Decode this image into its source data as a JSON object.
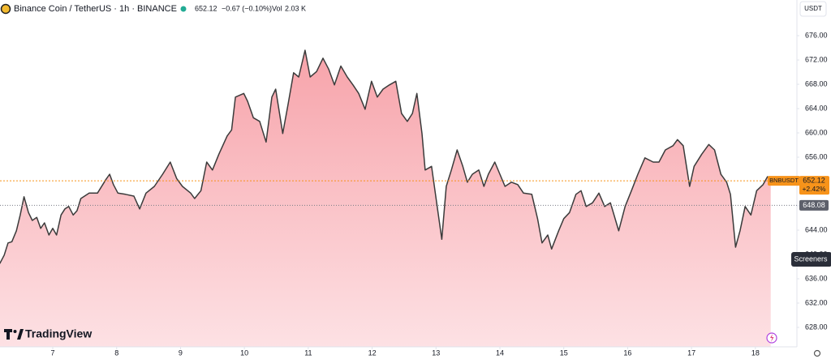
{
  "chart_data": {
    "type": "area",
    "title": "Binance Coin / TetherUS · 1h · BINANCE",
    "header": {
      "price_change": "−0.67 (−0.10%)",
      "volume_label": "Vol",
      "volume": "2.03 K"
    },
    "currency": "USDT",
    "line_color": "#3b3b3b",
    "fill_top": "#f7a3aa",
    "fill_bottom": "#fde1e4",
    "x": [
      6.17,
      6.24,
      6.3,
      6.36,
      6.43,
      6.49,
      6.55,
      6.62,
      6.68,
      6.75,
      6.81,
      6.87,
      6.94,
      7.0,
      7.06,
      7.13,
      7.19,
      7.25,
      7.32,
      7.38,
      7.44,
      7.57,
      7.7,
      7.83,
      7.89,
      7.95,
      8.02,
      8.14,
      8.27,
      8.36,
      8.46,
      8.59,
      8.72,
      8.84,
      8.94,
      9.03,
      9.16,
      9.22,
      9.32,
      9.41,
      9.5,
      9.6,
      9.73,
      9.8,
      9.86,
      9.99,
      10.05,
      10.14,
      10.24,
      10.34,
      10.43,
      10.49,
      10.6,
      10.68,
      10.77,
      10.85,
      10.95,
      11.03,
      11.13,
      11.23,
      11.32,
      11.41,
      11.51,
      11.61,
      11.7,
      11.79,
      11.89,
      11.99,
      12.08,
      12.17,
      12.27,
      12.37,
      12.46,
      12.55,
      12.63,
      12.7,
      12.78,
      12.83,
      12.93,
      13.01,
      13.09,
      13.16,
      13.24,
      13.33,
      13.42,
      13.49,
      13.57,
      13.67,
      13.75,
      13.82,
      13.92,
      14.0,
      14.08,
      14.18,
      14.28,
      14.37,
      14.5,
      14.59,
      14.66,
      14.75,
      14.81,
      14.92,
      15.0,
      15.09,
      15.19,
      15.27,
      15.35,
      15.45,
      15.55,
      15.64,
      15.73,
      15.86,
      15.96,
      16.06,
      16.16,
      16.27,
      16.4,
      16.49,
      16.59,
      16.71,
      16.78,
      16.87,
      16.97,
      17.04,
      17.16,
      17.27,
      17.36,
      17.46,
      17.55,
      17.61,
      17.69,
      17.76,
      17.84,
      17.93,
      18.02,
      18.12,
      18.19,
      18.24
    ],
    "values": [
      638.5,
      639.9,
      641.9,
      642.1,
      643.9,
      646.5,
      649.5,
      646.9,
      645.6,
      646.1,
      644.3,
      645.2,
      643.2,
      644.3,
      643.2,
      646.5,
      647.5,
      647.9,
      646.5,
      647.2,
      649.2,
      650.1,
      650.1,
      652.3,
      653.2,
      651.5,
      650.1,
      649.9,
      649.6,
      647.5,
      650.1,
      651.2,
      653.2,
      655.2,
      652.5,
      651.2,
      650.1,
      649.2,
      650.5,
      655.2,
      653.9,
      656.5,
      659.5,
      660.5,
      665.9,
      666.5,
      665.2,
      662.5,
      661.9,
      658.5,
      665.9,
      667.2,
      659.9,
      664.5,
      669.9,
      669.2,
      673.6,
      669.2,
      670.1,
      672.3,
      670.5,
      667.9,
      671.0,
      669.2,
      667.9,
      666.5,
      663.9,
      668.5,
      665.9,
      667.2,
      667.9,
      668.5,
      663.2,
      661.9,
      663.2,
      666.5,
      659.9,
      653.9,
      654.5,
      648.5,
      642.5,
      651.2,
      653.9,
      657.2,
      654.5,
      651.9,
      653.2,
      653.9,
      651.2,
      653.2,
      655.2,
      653.2,
      651.2,
      651.9,
      651.5,
      650.1,
      649.9,
      645.9,
      641.9,
      643.2,
      640.9,
      643.9,
      645.9,
      646.9,
      649.9,
      650.5,
      647.9,
      648.5,
      650.1,
      647.9,
      648.5,
      643.9,
      647.9,
      650.5,
      653.2,
      655.9,
      655.2,
      655.2,
      657.2,
      657.9,
      658.9,
      657.9,
      651.2,
      654.5,
      656.5,
      658.1,
      657.2,
      653.2,
      651.9,
      649.9,
      641.2,
      643.9,
      647.9,
      646.5,
      650.5,
      651.5,
      652.8,
      652.12
    ],
    "xlim": [
      6.174,
      18.65
    ],
    "xticks": [
      7,
      8,
      9,
      10,
      11,
      12,
      13,
      14,
      15,
      16,
      17,
      18
    ],
    "ylim": [
      624.8,
      681.87
    ],
    "yticks": [
      {
        "value": 676,
        "label": "676.00"
      },
      {
        "value": 672,
        "label": "672.00"
      },
      {
        "value": 668,
        "label": "668.00"
      },
      {
        "value": 664,
        "label": "664.00"
      },
      {
        "value": 660,
        "label": "660.00"
      },
      {
        "value": 656,
        "label": "656.00"
      },
      {
        "value": 652,
        "label": "652.00"
      },
      {
        "value": 648,
        "label": "648.00"
      },
      {
        "value": 644,
        "label": "644.00"
      },
      {
        "value": 640,
        "label": "640.00"
      },
      {
        "value": 636,
        "label": "636.00"
      },
      {
        "value": 632,
        "label": "632.00"
      },
      {
        "value": 628,
        "label": "628.00"
      }
    ],
    "last_price": {
      "symbol": "BNBUSDT",
      "value": 652.12,
      "label": "652.12",
      "change": "+2.42%",
      "color": "#f7931a"
    },
    "reference_line": {
      "value": 648.08,
      "label": "648.08"
    },
    "screeners_button": "Screeners",
    "brand": "TradingView"
  }
}
